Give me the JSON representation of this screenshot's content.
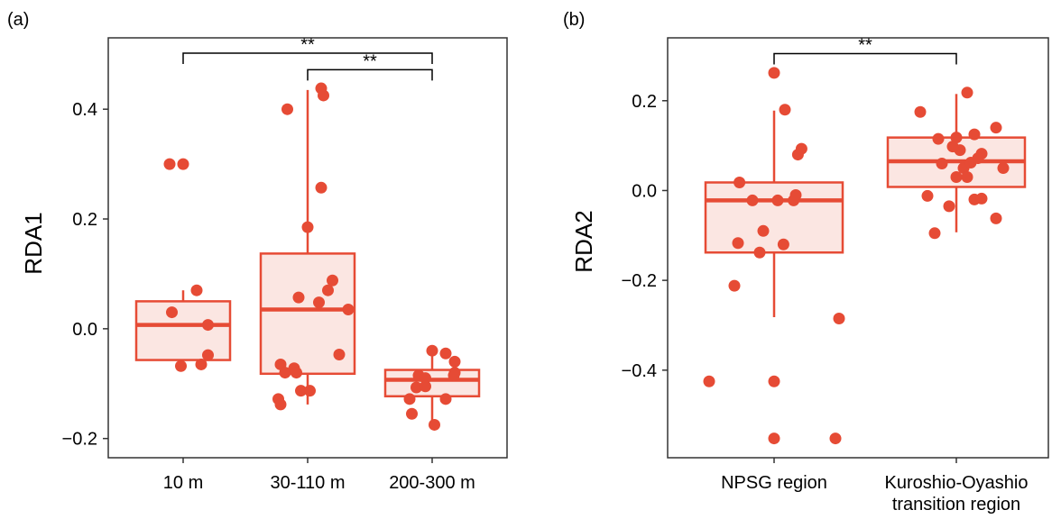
{
  "colors": {
    "accent": "#e64b35",
    "box_fill": "#fbe6e2",
    "frame": "#333333",
    "text": "#000000"
  },
  "chart_data": [
    {
      "panel": "(a)",
      "type": "box",
      "ylabel": "RDA1",
      "xlabel": "",
      "categories": [
        "10 m",
        "30-110 m",
        "200-300 m"
      ],
      "ylim": [
        -0.235,
        0.53
      ],
      "yticks": [
        -0.2,
        0.0,
        0.2,
        0.4
      ],
      "ytick_labels": [
        "−0.2",
        "0.0",
        "0.2",
        "0.4"
      ],
      "grid": false,
      "boxes": [
        {
          "q1": -0.057,
          "median": 0.007,
          "q3": 0.05,
          "whisker_low": -0.057,
          "whisker_high": 0.07
        },
        {
          "q1": -0.082,
          "median": 0.035,
          "q3": 0.137,
          "whisker_low": -0.138,
          "whisker_high": 0.435
        },
        {
          "q1": -0.123,
          "median": -0.093,
          "q3": -0.075,
          "whisker_low": -0.175,
          "whisker_high": -0.04
        }
      ],
      "points": [
        [
          [
            -0.3,
            0.3
          ],
          [
            0.0,
            0.3
          ],
          [
            -0.25,
            0.03
          ],
          [
            -0.05,
            -0.068
          ],
          [
            0.3,
            0.07
          ],
          [
            0.4,
            -0.065
          ],
          [
            0.55,
            0.007
          ],
          [
            0.55,
            -0.048
          ]
        ],
        [
          [
            -0.45,
            0.4
          ],
          [
            0.3,
            0.438
          ],
          [
            0.35,
            0.425
          ],
          [
            0.3,
            0.257
          ],
          [
            0.0,
            0.185
          ],
          [
            -0.2,
            0.057
          ],
          [
            0.25,
            0.048
          ],
          [
            0.45,
            0.07
          ],
          [
            0.55,
            0.088
          ],
          [
            0.9,
            0.035
          ],
          [
            0.7,
            -0.047
          ],
          [
            -0.6,
            -0.065
          ],
          [
            -0.5,
            -0.08
          ],
          [
            -0.3,
            -0.072
          ],
          [
            -0.25,
            -0.08
          ],
          [
            -0.65,
            -0.128
          ],
          [
            -0.6,
            -0.138
          ],
          [
            -0.15,
            -0.113
          ],
          [
            0.05,
            -0.113
          ]
        ],
        [
          [
            -0.5,
            -0.128
          ],
          [
            -0.45,
            -0.155
          ],
          [
            -0.35,
            -0.107
          ],
          [
            -0.3,
            -0.085
          ],
          [
            0.0,
            -0.04
          ],
          [
            0.3,
            -0.045
          ],
          [
            0.5,
            -0.06
          ],
          [
            0.5,
            -0.08
          ],
          [
            -0.15,
            -0.09
          ],
          [
            -0.15,
            -0.105
          ],
          [
            0.05,
            -0.175
          ],
          [
            0.3,
            -0.128
          ],
          [
            0.48,
            -0.085
          ]
        ]
      ],
      "annotations": [
        {
          "from": 0,
          "to": 2,
          "label": "**",
          "y": 0.502
        },
        {
          "from": 1,
          "to": 2,
          "label": "**",
          "y": 0.472
        }
      ]
    },
    {
      "panel": "(b)",
      "type": "box",
      "ylabel": "RDA2",
      "xlabel": "",
      "categories": [
        "NPSG region",
        "Kuroshio-Oyashio\ntransition region"
      ],
      "ylim": [
        -0.595,
        0.34
      ],
      "yticks": [
        -0.4,
        -0.2,
        0.0,
        0.2
      ],
      "ytick_labels": [
        "−0.4",
        "−0.2",
        "0.0",
        "0.2"
      ],
      "grid": false,
      "boxes": [
        {
          "q1": -0.138,
          "median": -0.022,
          "q3": 0.018,
          "whisker_low": -0.282,
          "whisker_high": 0.178
        },
        {
          "q1": 0.008,
          "median": 0.065,
          "q3": 0.118,
          "whisker_low": -0.093,
          "whisker_high": 0.215
        }
      ],
      "points": [
        [
          [
            0.0,
            0.262
          ],
          [
            0.15,
            0.18
          ],
          [
            0.33,
            0.08
          ],
          [
            0.38,
            0.093
          ],
          [
            -0.48,
            0.018
          ],
          [
            -0.3,
            -0.022
          ],
          [
            -0.2,
            -0.138
          ],
          [
            -0.15,
            -0.09
          ],
          [
            0.05,
            -0.022
          ],
          [
            0.27,
            -0.022
          ],
          [
            0.3,
            -0.01
          ],
          [
            0.13,
            -0.12
          ],
          [
            -0.5,
            -0.117
          ],
          [
            -0.55,
            -0.212
          ],
          [
            -0.9,
            -0.425
          ],
          [
            0.0,
            -0.425
          ],
          [
            0.9,
            -0.285
          ],
          [
            0.0,
            -0.552
          ],
          [
            0.85,
            -0.552
          ]
        ],
        [
          [
            -0.5,
            0.175
          ],
          [
            0.15,
            0.218
          ],
          [
            -0.25,
            0.115
          ],
          [
            -0.2,
            0.06
          ],
          [
            0.0,
            0.118
          ],
          [
            0.05,
            0.09
          ],
          [
            -0.05,
            0.098
          ],
          [
            0.25,
            0.125
          ],
          [
            0.55,
            0.14
          ],
          [
            -0.4,
            -0.012
          ],
          [
            -0.1,
            -0.035
          ],
          [
            -0.3,
            -0.095
          ],
          [
            0.0,
            0.03
          ],
          [
            0.1,
            0.05
          ],
          [
            0.15,
            0.03
          ],
          [
            0.2,
            0.062
          ],
          [
            0.35,
            0.082
          ],
          [
            0.3,
            0.072
          ],
          [
            0.25,
            -0.02
          ],
          [
            0.35,
            -0.018
          ],
          [
            0.65,
            0.05
          ],
          [
            0.55,
            -0.062
          ]
        ]
      ],
      "annotations": [
        {
          "from": 0,
          "to": 1,
          "label": "**",
          "y": 0.305
        }
      ]
    }
  ]
}
